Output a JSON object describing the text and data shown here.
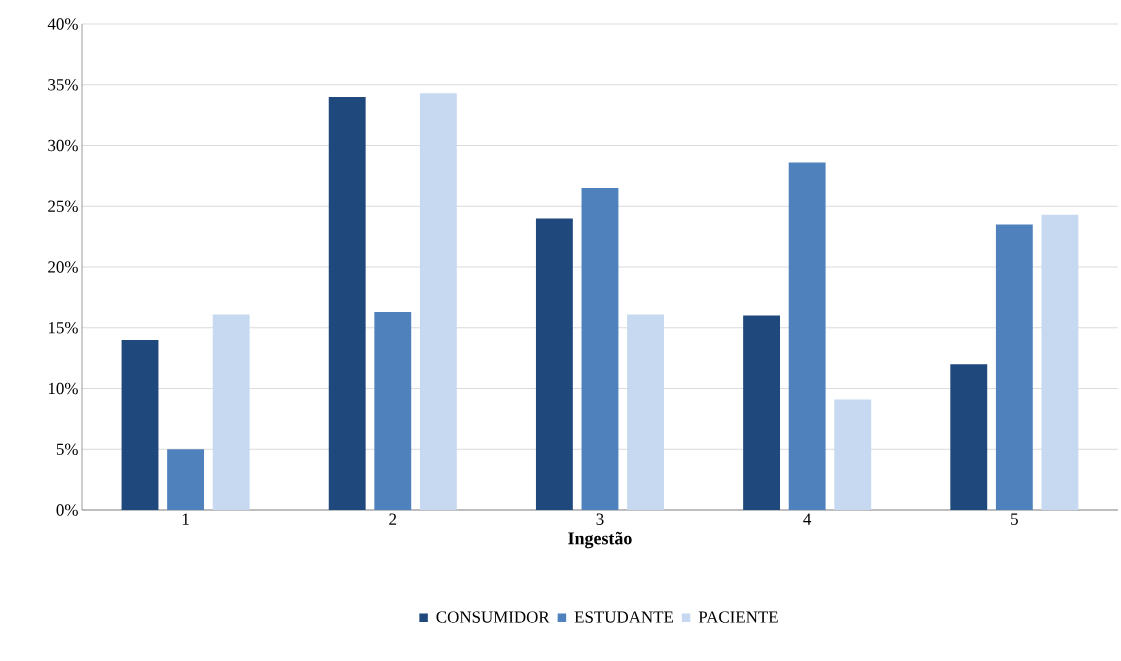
{
  "chart_data": {
    "type": "bar",
    "xlabel": "Ingestão",
    "categories": [
      "1",
      "2",
      "3",
      "4",
      "5"
    ],
    "series": [
      {
        "name": "CONSUMIDOR",
        "color": "#1f497d",
        "values": [
          14,
          34,
          24,
          16,
          12
        ]
      },
      {
        "name": "ESTUDANTE",
        "color": "#4f81bd",
        "values": [
          5,
          16.3,
          26.5,
          28.6,
          23.5
        ]
      },
      {
        "name": "PACIENTE",
        "color": "#c6d9f0",
        "values": [
          16.1,
          34.3,
          16.1,
          9.1,
          24.3
        ]
      }
    ],
    "ylim": [
      0,
      40
    ],
    "yticks": [
      {
        "value": 0,
        "label": "0%"
      },
      {
        "value": 5,
        "label": "5%"
      },
      {
        "value": 10,
        "label": "10%"
      },
      {
        "value": 15,
        "label": "15%"
      },
      {
        "value": 20,
        "label": "20%"
      },
      {
        "value": 25,
        "label": "25%"
      },
      {
        "value": 30,
        "label": "30%"
      },
      {
        "value": 35,
        "label": "35%"
      },
      {
        "value": 40,
        "label": "40%"
      }
    ],
    "grid": "y",
    "legend": "bottom"
  }
}
